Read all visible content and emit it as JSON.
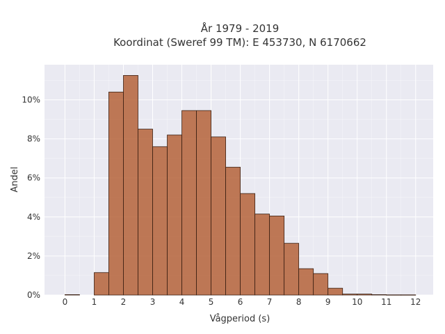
{
  "chart_data": {
    "type": "bar",
    "title_line1": "År 1979 - 2019",
    "title_line2": "Koordinat (Sweref 99 TM): E 453730, N 6170662",
    "xlabel": "Vågperiod (s)",
    "ylabel": "Andel",
    "xlim": [
      -0.7,
      12.6
    ],
    "ylim": [
      0,
      11.8
    ],
    "x_ticks": [
      0,
      1,
      2,
      3,
      4,
      5,
      6,
      7,
      8,
      9,
      10,
      11,
      12
    ],
    "y_ticks": [
      0,
      2,
      4,
      6,
      8,
      10
    ],
    "y_tick_labels": [
      "0%",
      "2%",
      "4%",
      "6%",
      "8%",
      "10%"
    ],
    "bin_width": 0.5,
    "bin_starts": [
      0,
      1,
      1.5,
      2,
      2.5,
      3,
      3.5,
      4,
      4.5,
      5,
      5.5,
      6,
      6.5,
      7,
      7.5,
      8,
      8.5,
      9,
      9.5,
      10,
      10.5,
      11,
      11.5
    ],
    "values": [
      0.02,
      1.15,
      10.4,
      11.25,
      8.5,
      7.6,
      8.2,
      9.45,
      9.45,
      8.1,
      6.55,
      5.2,
      4.15,
      4.05,
      2.65,
      1.35,
      1.1,
      0.35,
      0.05,
      0.05,
      0.02,
      0.01,
      0.01
    ],
    "grid": true,
    "colors": {
      "bar": "#b5633a",
      "edge": "#3a1f12",
      "plot_bg": "#eaeaf2",
      "grid": "#ffffff"
    }
  }
}
